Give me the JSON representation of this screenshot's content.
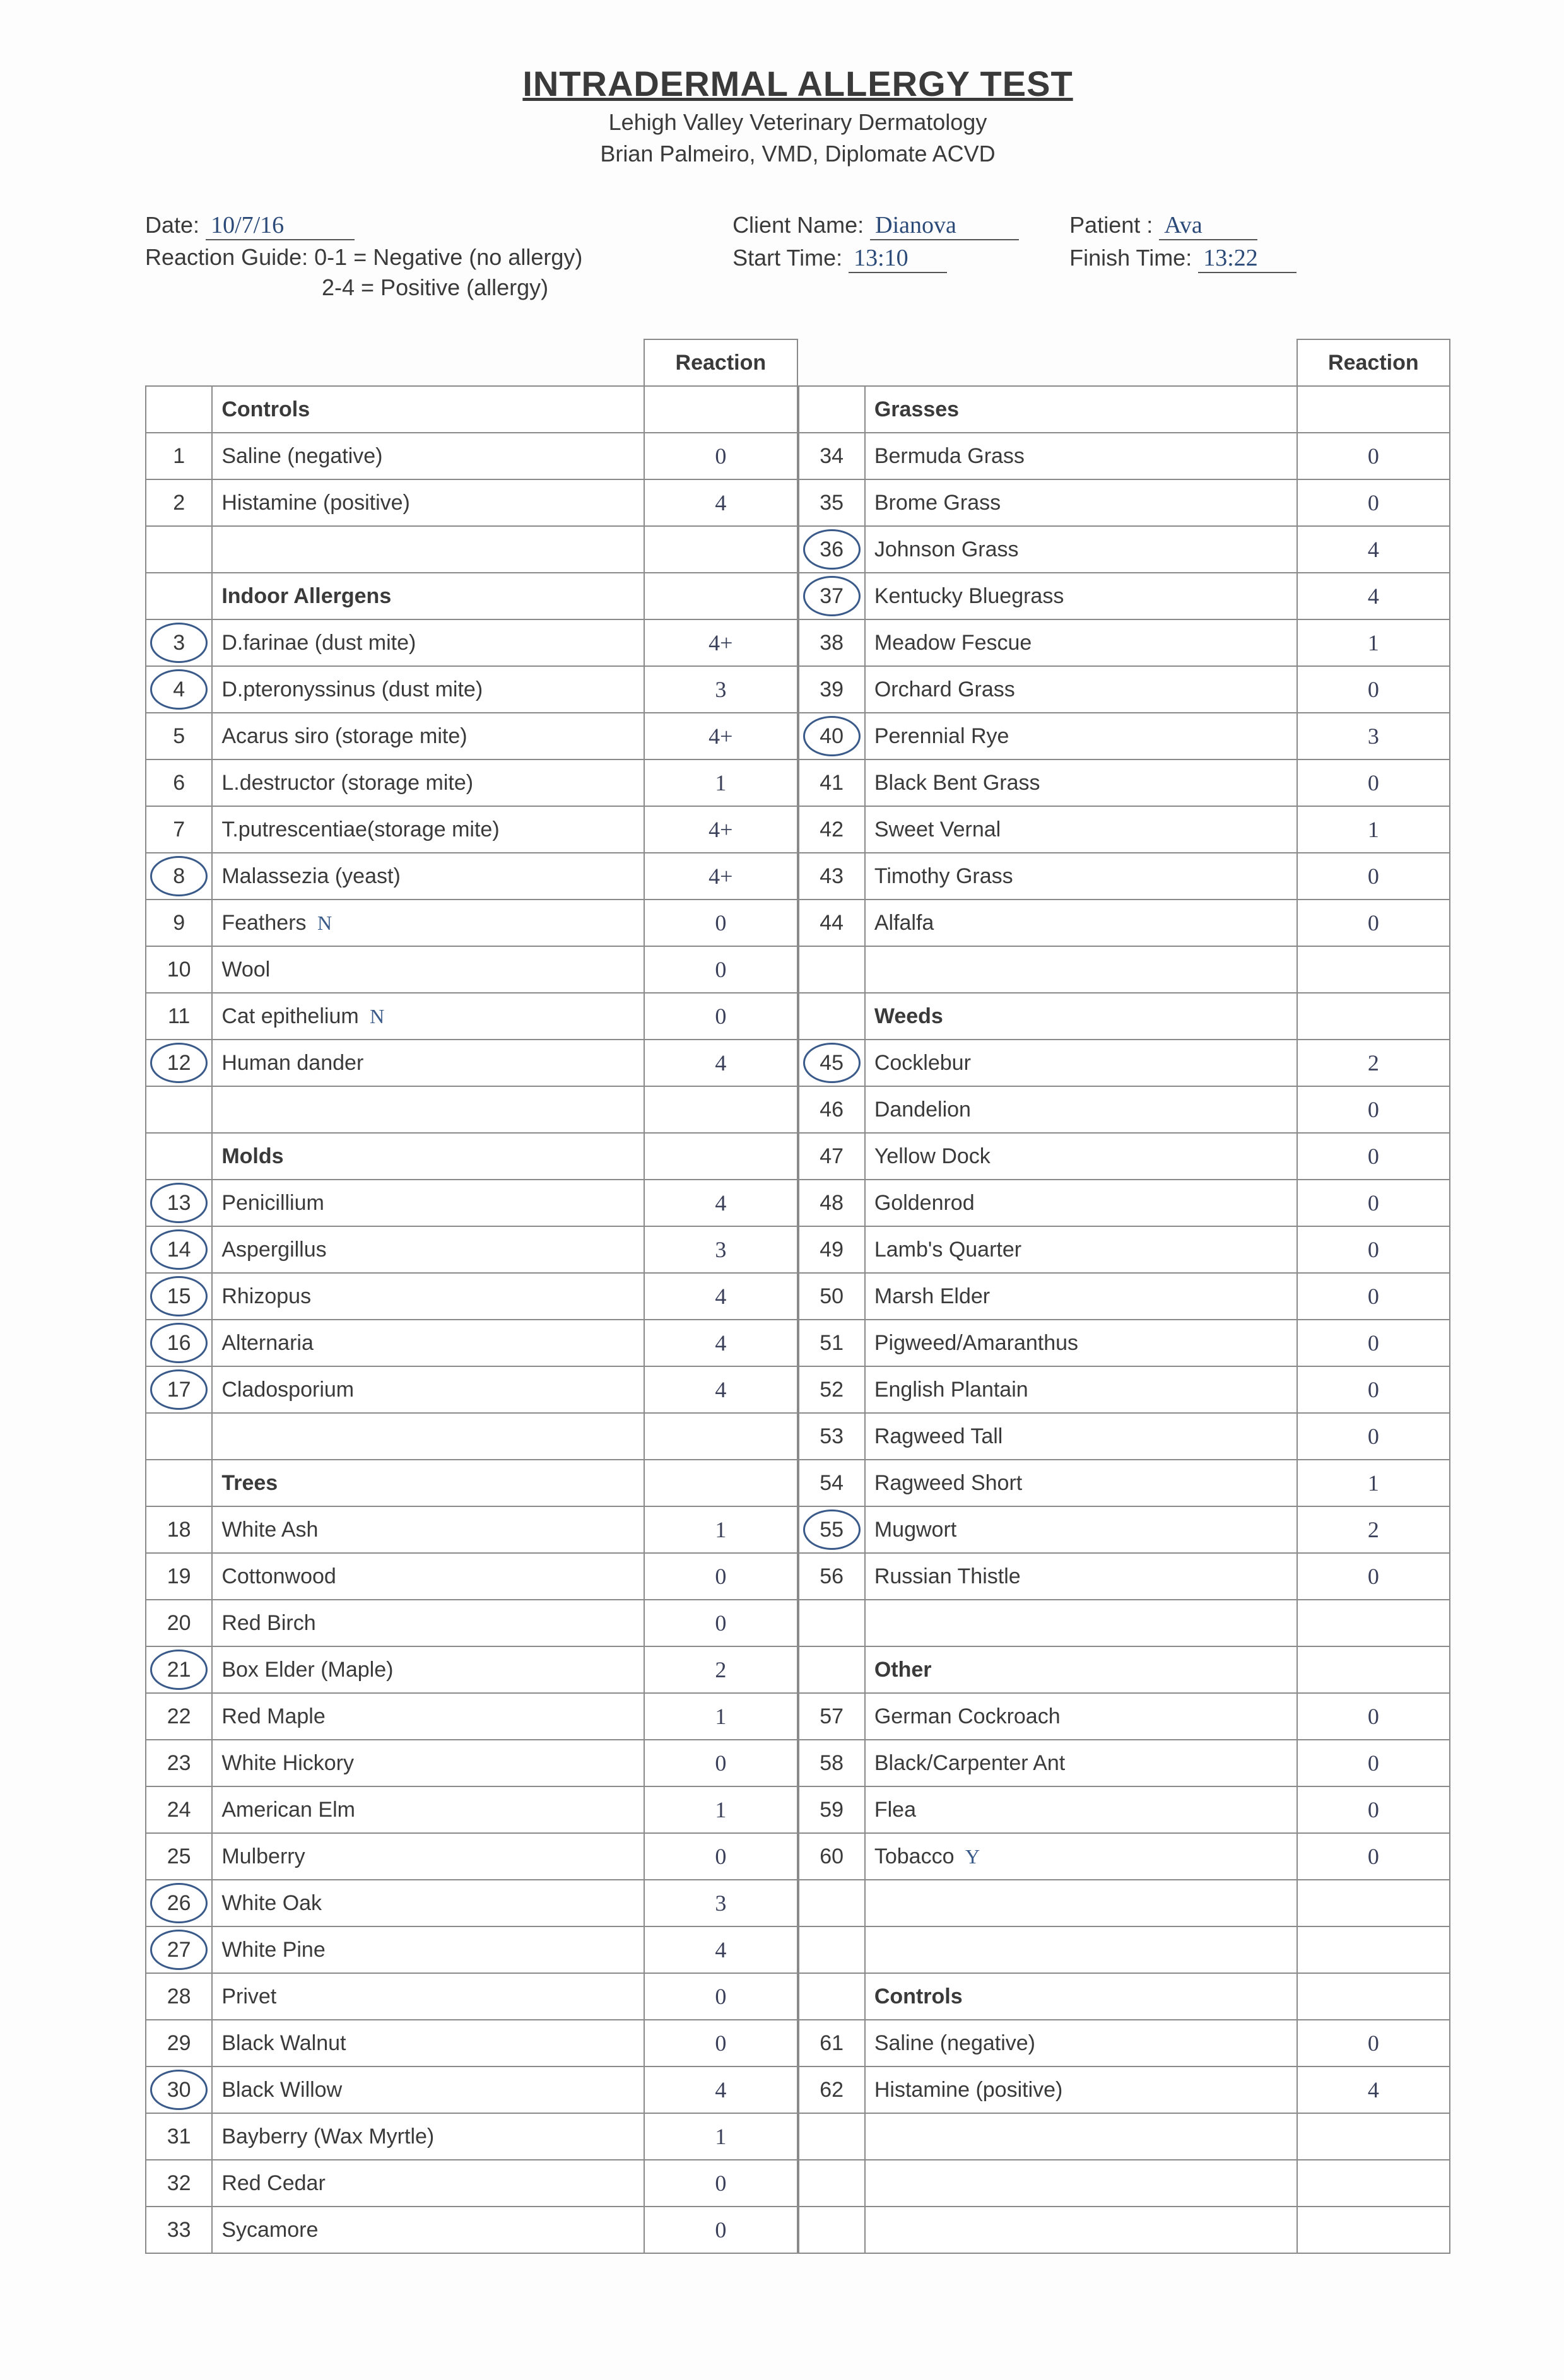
{
  "title": "INTRADERMAL ALLERGY TEST",
  "subtitle1": "Lehigh Valley Veterinary Dermatology",
  "subtitle2": "Brian Palmeiro, VMD, Diplomate ACVD",
  "labels": {
    "date": "Date:",
    "client": "Client Name:",
    "patient": "Patient :",
    "start": "Start Time:",
    "finish": "Finish Time:",
    "guide1": "Reaction Guide:  0-1 = Negative (no allergy)",
    "guide2": "2-4 = Positive (allergy)",
    "reaction": "Reaction"
  },
  "fields": {
    "date": "10/7/16",
    "client": "Dianova",
    "patient": "Ava",
    "start": "13:10",
    "finish": "13:22"
  },
  "left": [
    {
      "section": "Controls"
    },
    {
      "num": "1",
      "name": "Saline (negative)",
      "react": "0"
    },
    {
      "num": "2",
      "name": "Histamine (positive)",
      "react": "4"
    },
    {
      "blank": true
    },
    {
      "section": "Indoor Allergens"
    },
    {
      "num": "3",
      "circled": true,
      "name": "D.farinae (dust mite)",
      "react": "4+"
    },
    {
      "num": "4",
      "circled": true,
      "name": "D.pteronyssinus (dust mite)",
      "react": "3"
    },
    {
      "num": "5",
      "name": "Acarus siro (storage mite)",
      "react": "4+"
    },
    {
      "num": "6",
      "name": "L.destructor (storage mite)",
      "react": "1"
    },
    {
      "num": "7",
      "name": "T.putrescentiae(storage mite)",
      "react": "4+"
    },
    {
      "num": "8",
      "circled": true,
      "name": "Malassezia (yeast)",
      "react": "4+"
    },
    {
      "num": "9",
      "name": "Feathers",
      "note": "N",
      "react": "0"
    },
    {
      "num": "10",
      "name": "Wool",
      "react": "0"
    },
    {
      "num": "11",
      "name": "Cat epithelium",
      "note": "N",
      "react": "0"
    },
    {
      "num": "12",
      "circled": true,
      "name": "Human dander",
      "react": "4"
    },
    {
      "blank": true
    },
    {
      "section": "Molds"
    },
    {
      "num": "13",
      "circled": true,
      "name": "Penicillium",
      "react": "4"
    },
    {
      "num": "14",
      "circled": true,
      "name": "Aspergillus",
      "react": "3"
    },
    {
      "num": "15",
      "circled": true,
      "name": "Rhizopus",
      "react": "4"
    },
    {
      "num": "16",
      "circled": true,
      "name": "Alternaria",
      "react": "4"
    },
    {
      "num": "17",
      "circled": true,
      "name": "Cladosporium",
      "react": "4"
    },
    {
      "blank": true
    },
    {
      "section": "Trees"
    },
    {
      "num": "18",
      "name": "White Ash",
      "react": "1"
    },
    {
      "num": "19",
      "name": "Cottonwood",
      "react": "0"
    },
    {
      "num": "20",
      "name": "Red Birch",
      "react": "0"
    },
    {
      "num": "21",
      "circled": true,
      "name": "Box Elder (Maple)",
      "react": "2"
    },
    {
      "num": "22",
      "name": "Red Maple",
      "react": "1"
    },
    {
      "num": "23",
      "name": "White Hickory",
      "react": "0"
    },
    {
      "num": "24",
      "name": "American Elm",
      "react": "1"
    },
    {
      "num": "25",
      "name": "Mulberry",
      "react": "0"
    },
    {
      "num": "26",
      "circled": true,
      "name": "White Oak",
      "react": "3"
    },
    {
      "num": "27",
      "circled": true,
      "name": "White Pine",
      "react": "4"
    },
    {
      "num": "28",
      "name": "Privet",
      "react": "0"
    },
    {
      "num": "29",
      "name": "Black Walnut",
      "react": "0"
    },
    {
      "num": "30",
      "circled": true,
      "name": "Black Willow",
      "react": "4"
    },
    {
      "num": "31",
      "name": "Bayberry (Wax Myrtle)",
      "react": "1"
    },
    {
      "num": "32",
      "name": "Red Cedar",
      "react": "0"
    },
    {
      "num": "33",
      "name": "Sycamore",
      "react": "0"
    }
  ],
  "right": [
    {
      "section": "Grasses"
    },
    {
      "num": "34",
      "name": "Bermuda Grass",
      "react": "0"
    },
    {
      "num": "35",
      "name": "Brome Grass",
      "react": "0"
    },
    {
      "num": "36",
      "circled": true,
      "name": "Johnson Grass",
      "react": "4"
    },
    {
      "num": "37",
      "circled": true,
      "name": "Kentucky Bluegrass",
      "react": "4"
    },
    {
      "num": "38",
      "name": "Meadow Fescue",
      "react": "1"
    },
    {
      "num": "39",
      "name": "Orchard Grass",
      "react": "0"
    },
    {
      "num": "40",
      "circled": true,
      "name": "Perennial Rye",
      "react": "3"
    },
    {
      "num": "41",
      "name": "Black Bent Grass",
      "react": "0"
    },
    {
      "num": "42",
      "name": "Sweet Vernal",
      "react": "1"
    },
    {
      "num": "43",
      "name": "Timothy Grass",
      "react": "0"
    },
    {
      "num": "44",
      "name": "Alfalfa",
      "react": "0"
    },
    {
      "blank": true
    },
    {
      "section": "Weeds"
    },
    {
      "num": "45",
      "circled": true,
      "name": "Cocklebur",
      "react": "2"
    },
    {
      "num": "46",
      "name": "Dandelion",
      "react": "0"
    },
    {
      "num": "47",
      "name": "Yellow Dock",
      "react": "0"
    },
    {
      "num": "48",
      "name": "Goldenrod",
      "react": "0"
    },
    {
      "num": "49",
      "name": "Lamb's Quarter",
      "react": "0"
    },
    {
      "num": "50",
      "name": "Marsh Elder",
      "react": "0"
    },
    {
      "num": "51",
      "name": "Pigweed/Amaranthus",
      "react": "0"
    },
    {
      "num": "52",
      "name": "English Plantain",
      "react": "0"
    },
    {
      "num": "53",
      "name": "Ragweed Tall",
      "react": "0"
    },
    {
      "num": "54",
      "name": "Ragweed Short",
      "react": "1"
    },
    {
      "num": "55",
      "circled": true,
      "name": "Mugwort",
      "react": "2"
    },
    {
      "num": "56",
      "name": "Russian Thistle",
      "react": "0"
    },
    {
      "blank": true
    },
    {
      "section": "Other"
    },
    {
      "num": "57",
      "name": "German Cockroach",
      "react": "0"
    },
    {
      "num": "58",
      "name": "Black/Carpenter Ant",
      "react": "0"
    },
    {
      "num": "59",
      "name": "Flea",
      "react": "0"
    },
    {
      "num": "60",
      "name": "Tobacco",
      "note": "Y",
      "react": "0"
    },
    {
      "blank": true
    },
    {
      "blank": true
    },
    {
      "section": "Controls"
    },
    {
      "num": "61",
      "name": "Saline (negative)",
      "react": "0"
    },
    {
      "num": "62",
      "name": "Histamine (positive)",
      "react": "4"
    },
    {
      "blank": true
    },
    {
      "blank": true
    },
    {
      "blank": true
    }
  ]
}
